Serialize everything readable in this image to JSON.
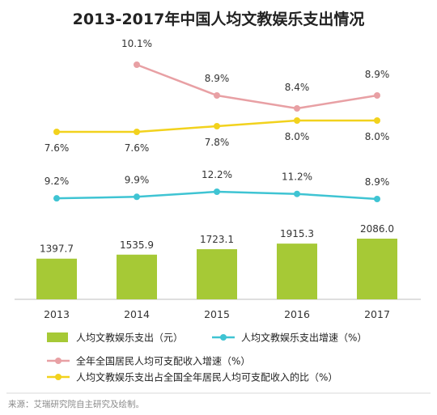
{
  "chart_data": {
    "title": "2013-2017年中国人均文教娱乐支出情况",
    "type": "bar",
    "categories": [
      "2013",
      "2014",
      "2015",
      "2016",
      "2017"
    ],
    "bar_series": {
      "name": "人均文教娱乐支出（元）",
      "values": [
        1397.7,
        1535.9,
        1723.1,
        1915.3,
        2086.0
      ],
      "labels": [
        "1397.7",
        "1535.9",
        "1723.1",
        "1915.3",
        "2086.0"
      ],
      "color": "#a6c936"
    },
    "line_series": [
      {
        "name": "全年全国居民人均可支配收入增速（%）",
        "values": [
          null,
          10.1,
          8.9,
          8.4,
          8.9
        ],
        "labels": [
          "",
          "10.1%",
          "8.9%",
          "8.4%",
          "8.9%"
        ],
        "color": "#e8a0a4"
      },
      {
        "name": "人均文教娱乐支出占全国全年居民人均可支配收入的比（%）",
        "values": [
          7.6,
          7.6,
          7.8,
          8.0,
          8.0
        ],
        "labels": [
          "7.6%",
          "7.6%",
          "7.8%",
          "8.0%",
          "8.0%"
        ],
        "color": "#f2d21d"
      },
      {
        "name": "人均文教娱乐支出增速（%）",
        "values": [
          9.2,
          9.9,
          12.2,
          11.2,
          8.9
        ],
        "labels": [
          "9.2%",
          "9.9%",
          "12.2%",
          "11.2%",
          "8.9%"
        ],
        "color": "#3fc4d3"
      }
    ],
    "legend": [
      {
        "label": "人均文教娱乐支出（元）",
        "kind": "bar",
        "color": "#a6c936"
      },
      {
        "label": "人均文教娱乐支出增速（%）",
        "kind": "line",
        "color": "#3fc4d3"
      },
      {
        "label": "全年全国居民人均可支配收入增速（%）",
        "kind": "line",
        "color": "#e8a0a4"
      },
      {
        "label": "人均文教娱乐支出占全国全年居民人均可支配收入的比（%）",
        "kind": "line",
        "color": "#f2d21d"
      }
    ]
  },
  "source": "来源：艾瑞研究院自主研究及绘制。"
}
